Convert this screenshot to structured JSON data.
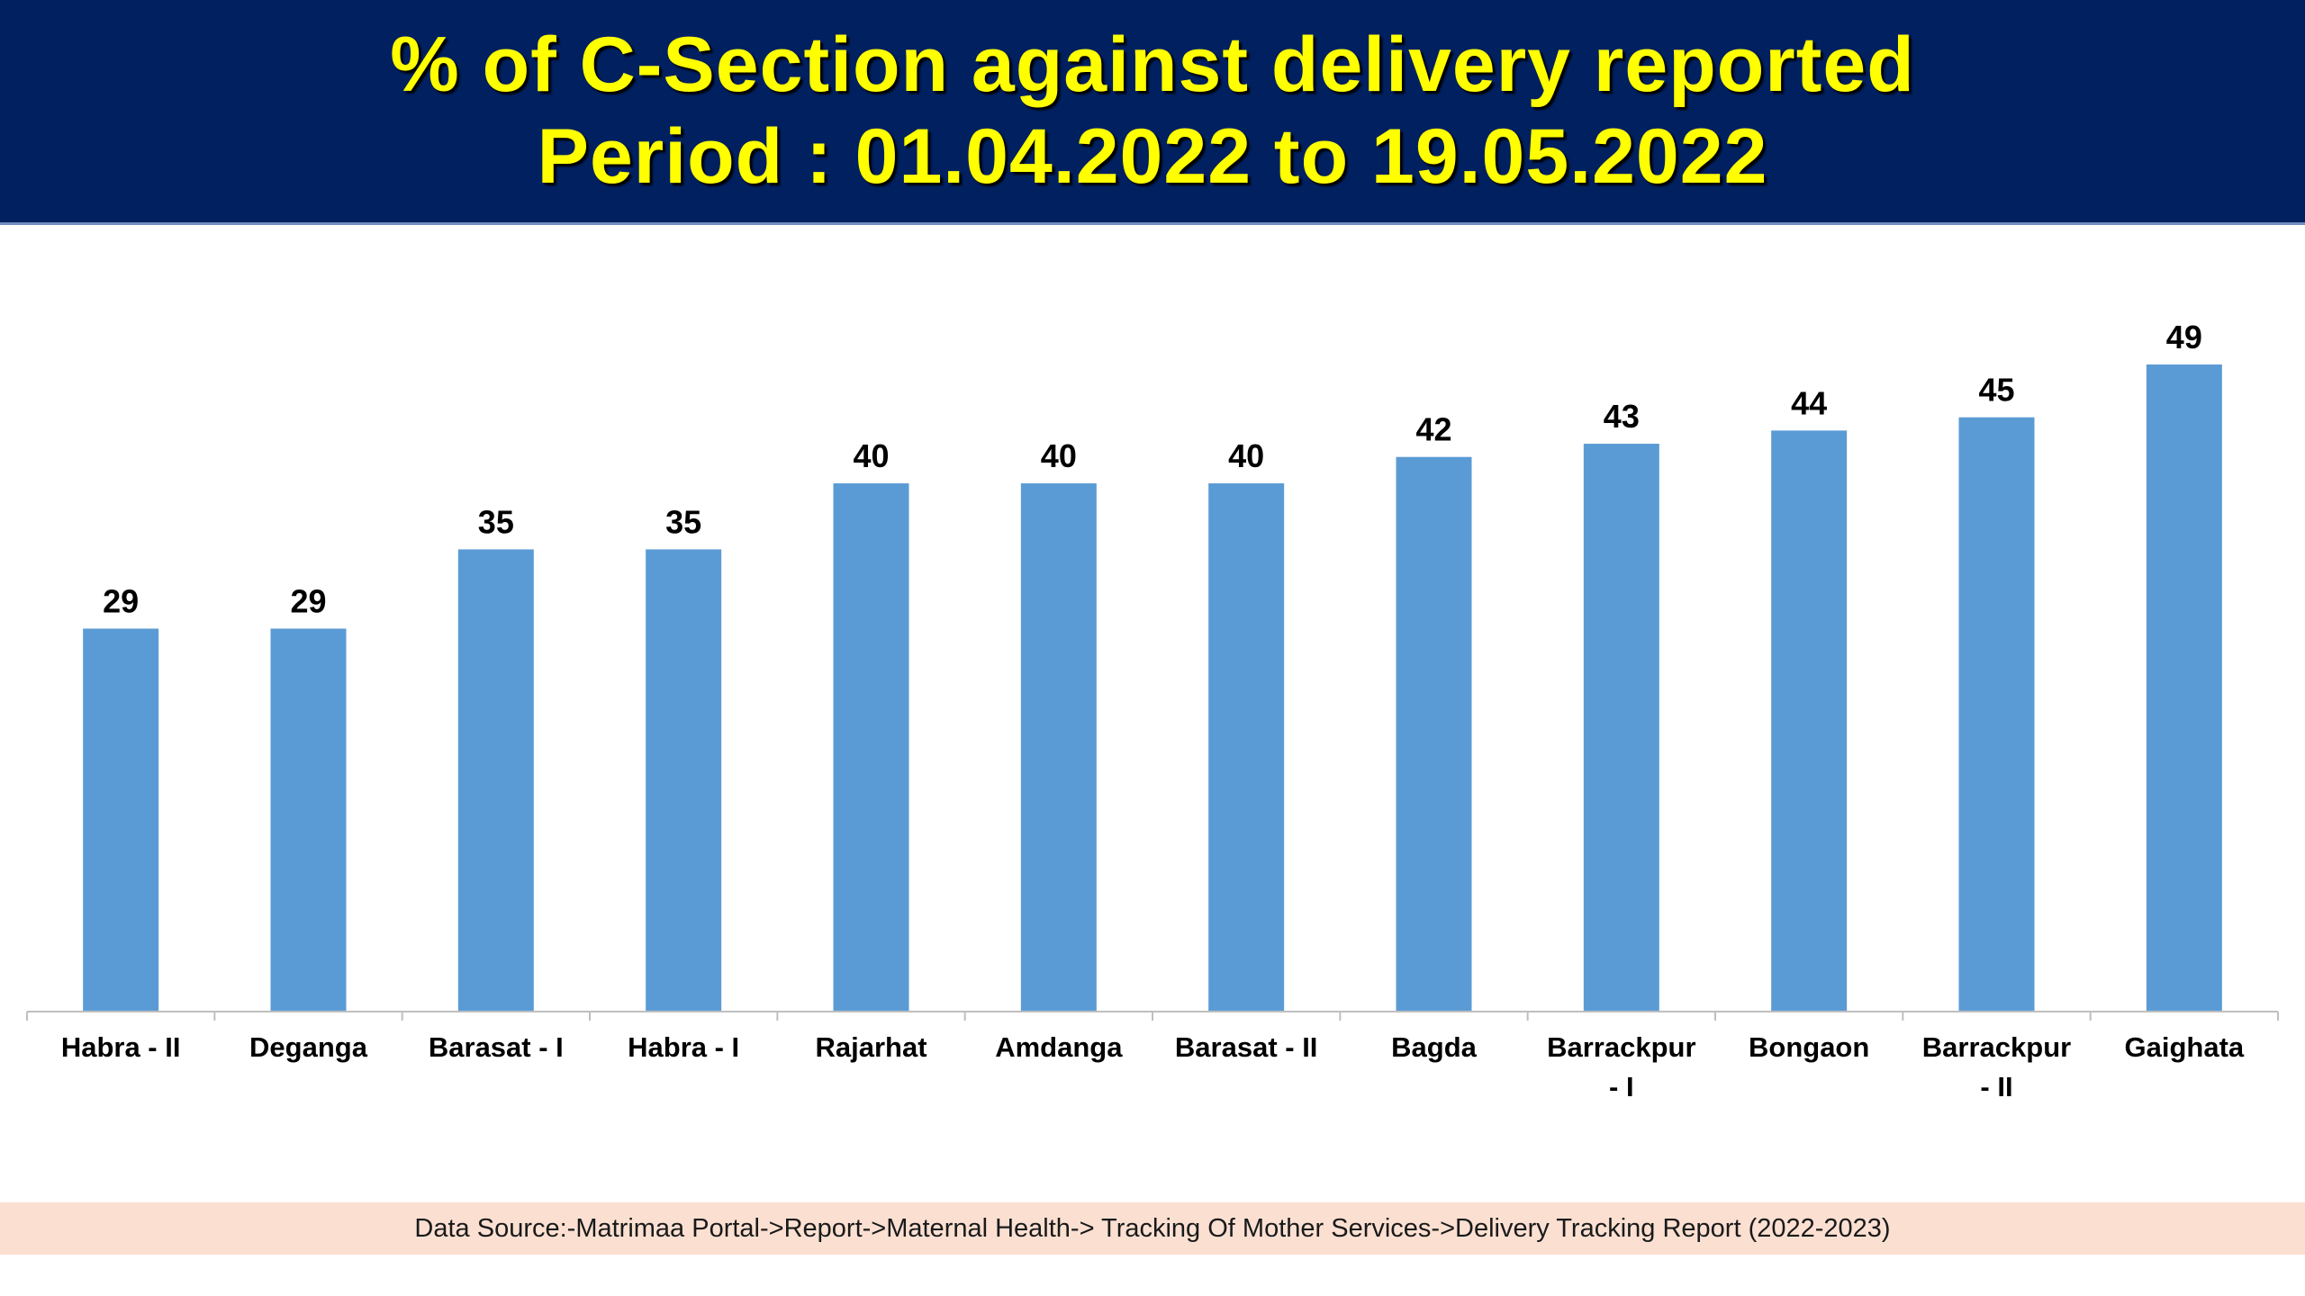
{
  "header": {
    "title_line1": "% of C-Section against delivery reported",
    "title_line2": "Period : 01.04.2022 to 19.05.2022"
  },
  "chart_data": {
    "type": "bar",
    "title": "% of C-Section against delivery reported",
    "subtitle": "Period : 01.04.2022 to 19.05.2022",
    "categories": [
      "Habra - II",
      "Deganga",
      "Barasat - I",
      "Habra - I",
      "Rajarhat",
      "Amdanga",
      "Barasat - II",
      "Bagda",
      "Barrackpur - I",
      "Bongaon",
      "Barrackpur - II",
      "Gaighata"
    ],
    "category_label_lines": [
      [
        "Habra - II"
      ],
      [
        "Deganga"
      ],
      [
        "Barasat - I"
      ],
      [
        "Habra - I"
      ],
      [
        "Rajarhat"
      ],
      [
        "Amdanga"
      ],
      [
        "Barasat - II"
      ],
      [
        "Bagda"
      ],
      [
        "Barrackpur",
        "- I"
      ],
      [
        "Bongaon"
      ],
      [
        "Barrackpur",
        "- II"
      ],
      [
        "Gaighata"
      ]
    ],
    "values": [
      29,
      29,
      35,
      35,
      40,
      40,
      40,
      42,
      43,
      44,
      45,
      49
    ],
    "xlabel": "",
    "ylabel": "",
    "ylim": [
      0,
      49
    ],
    "grid": false,
    "legend": "none",
    "bar_color": "#5b9bd5"
  },
  "footer": {
    "source": "Data Source:-Matrimaa Portal->Report->Maternal Health-> Tracking Of Mother Services->Delivery Tracking Report (2022-2023)"
  },
  "colors": {
    "header_bg": "#002060",
    "title_text": "#ffff00",
    "footer_bg": "#fbe0d2"
  }
}
